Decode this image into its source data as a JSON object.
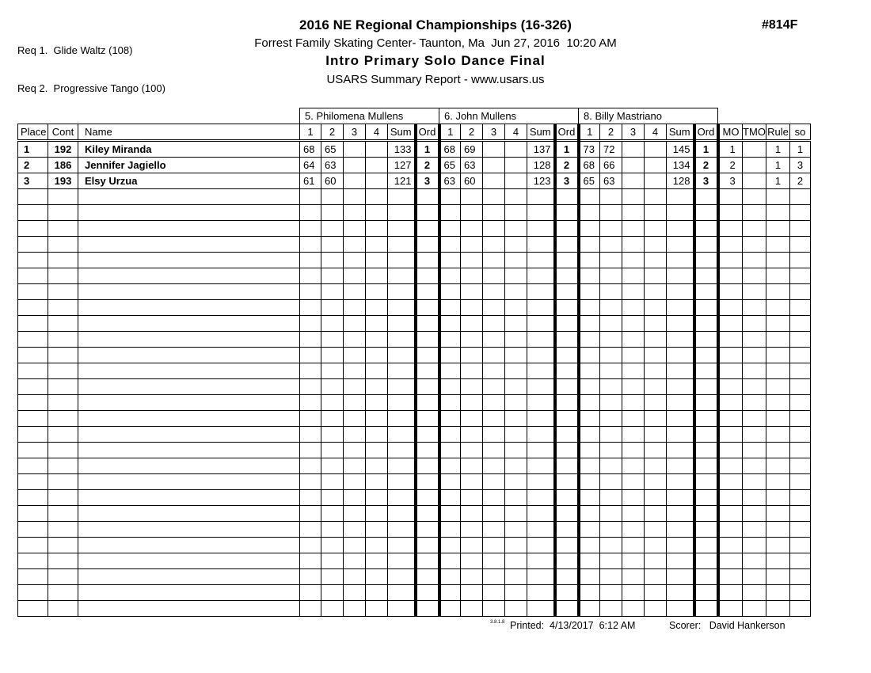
{
  "requirements": {
    "req1": "Req 1.  Glide Waltz (108)",
    "req2": "Req 2.  Progressive Tango (100)"
  },
  "header": {
    "title": "2016 NE Regional Championships (16-326)",
    "venue_line": "Forrest Family Skating Center- Taunton, Ma  Jun 27, 2016  10:20 AM",
    "event_title": "Intro Primary Solo Dance Final",
    "report_line": "USARS Summary Report - www.usars.us",
    "report_id": "#814F"
  },
  "table": {
    "judges": [
      {
        "label": "5.  Philomena Mullens"
      },
      {
        "label": "6.  John Mullens"
      },
      {
        "label": "8.  Billy Mastriano"
      }
    ],
    "columns": {
      "place": "Place",
      "cont": "Cont",
      "name": "Name",
      "c1": "1",
      "c2": "2",
      "c3": "3",
      "c4": "4",
      "sum": "Sum",
      "ord": "Ord",
      "mo": "MO",
      "tmo": "TMO",
      "rule": "Rule",
      "so": "so"
    },
    "rows": [
      {
        "place": "1",
        "cont": "192",
        "name": "Kiley Miranda",
        "judges": [
          {
            "s1": "68",
            "s2": "65",
            "s3": "",
            "s4": "",
            "sum": "133",
            "ord": "1"
          },
          {
            "s1": "68",
            "s2": "69",
            "s3": "",
            "s4": "",
            "sum": "137",
            "ord": "1"
          },
          {
            "s1": "73",
            "s2": "72",
            "s3": "",
            "s4": "",
            "sum": "145",
            "ord": "1"
          }
        ],
        "mo": "1",
        "tmo": "",
        "rule": "1",
        "so": "1"
      },
      {
        "place": "2",
        "cont": "186",
        "name": "Jennifer Jagiello",
        "judges": [
          {
            "s1": "64",
            "s2": "63",
            "s3": "",
            "s4": "",
            "sum": "127",
            "ord": "2"
          },
          {
            "s1": "65",
            "s2": "63",
            "s3": "",
            "s4": "",
            "sum": "128",
            "ord": "2"
          },
          {
            "s1": "68",
            "s2": "66",
            "s3": "",
            "s4": "",
            "sum": "134",
            "ord": "2"
          }
        ],
        "mo": "2",
        "tmo": "",
        "rule": "1",
        "so": "3"
      },
      {
        "place": "3",
        "cont": "193",
        "name": "Elsy Urzua",
        "judges": [
          {
            "s1": "61",
            "s2": "60",
            "s3": "",
            "s4": "",
            "sum": "121",
            "ord": "3"
          },
          {
            "s1": "63",
            "s2": "60",
            "s3": "",
            "s4": "",
            "sum": "123",
            "ord": "3"
          },
          {
            "s1": "65",
            "s2": "63",
            "s3": "",
            "s4": "",
            "sum": "128",
            "ord": "3"
          }
        ],
        "mo": "3",
        "tmo": "",
        "rule": "1",
        "so": "2"
      }
    ],
    "empty_row_count": 27
  },
  "footer": {
    "version": "3.8.1.8",
    "printed": "Printed:  4/13/2017  6:12 AM",
    "scorer": "Scorer:   David Hankerson"
  }
}
